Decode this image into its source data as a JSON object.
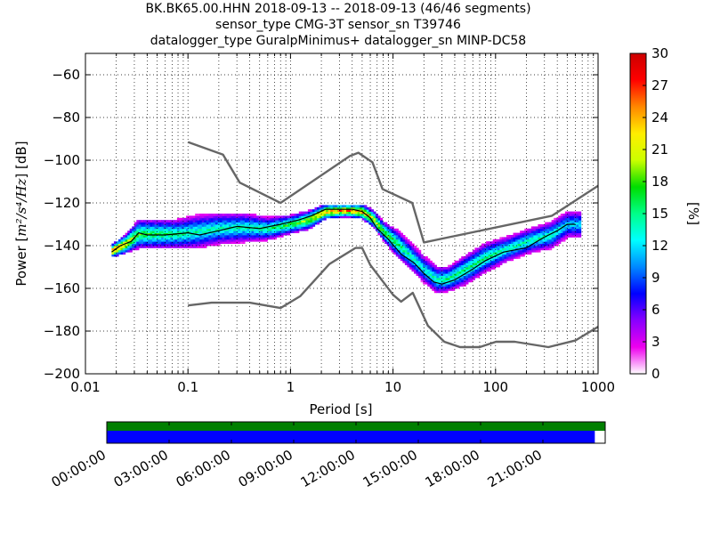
{
  "title_lines": [
    "BK.BK65.00.HHN   2018-09-13 -- 2018-09-13  (46/46 segments)",
    "sensor_type CMG-3T sensor_sn T39746",
    "datalogger_type GuralpMinimus+ datalogger_sn MINP-DC58"
  ],
  "chart_data": [
    {
      "type": "heatmap",
      "xlabel": "Period [s]",
      "ylabel": "Power [m²/s⁴/Hz] [dB]",
      "ylabel_parts": {
        "prefix": "Power [",
        "unit": "m²/s⁴/Hz",
        "suffix": "] [dB]"
      },
      "x_scale": "log",
      "xlim": [
        0.01,
        1000
      ],
      "ylim": [
        -200,
        -50
      ],
      "x_ticks": [
        0.01,
        0.1,
        1,
        10,
        100,
        1000
      ],
      "x_tick_labels": [
        "0.01",
        "0.1",
        "1",
        "10",
        "100",
        "1000"
      ],
      "y_ticks": [
        -200,
        -180,
        -160,
        -140,
        -120,
        -100,
        -80,
        -60
      ],
      "y_tick_labels": [
        "−200",
        "−180",
        "−160",
        "−140",
        "−120",
        "−100",
        "−80",
        "−60"
      ],
      "grid": true,
      "colorbar": {
        "label": "[%]",
        "range": [
          0,
          30
        ],
        "ticks": [
          0,
          3,
          6,
          9,
          12,
          15,
          18,
          21,
          24,
          27,
          30
        ],
        "tick_labels": [
          "0",
          "3",
          "6",
          "9",
          "12",
          "15",
          "18",
          "21",
          "24",
          "27",
          "30"
        ],
        "colors": [
          "#ffffff",
          "#ee00ee",
          "#8800ff",
          "#0000ff",
          "#0088ff",
          "#00ffff",
          "#00ff88",
          "#00dd00",
          "#ccff00",
          "#ffee00",
          "#ff8800",
          "#ff0000",
          "#cc0000"
        ]
      },
      "nhnm": [
        {
          "x": 0.1,
          "y": -91.5
        },
        {
          "x": 0.22,
          "y": -97.4
        },
        {
          "x": 0.32,
          "y": -110.5
        },
        {
          "x": 0.8,
          "y": -120.0
        },
        {
          "x": 3.8,
          "y": -98.0
        },
        {
          "x": 4.6,
          "y": -96.5
        },
        {
          "x": 6.3,
          "y": -101.0
        },
        {
          "x": 7.9,
          "y": -113.5
        },
        {
          "x": 15.4,
          "y": -120.0
        },
        {
          "x": 20,
          "y": -138.5
        },
        {
          "x": 354.8,
          "y": -126.0
        },
        {
          "x": 1000,
          "y": -112.0
        }
      ],
      "nlnm": [
        {
          "x": 0.1,
          "y": -168.0
        },
        {
          "x": 0.17,
          "y": -166.7
        },
        {
          "x": 0.4,
          "y": -166.7
        },
        {
          "x": 0.8,
          "y": -169.2
        },
        {
          "x": 1.24,
          "y": -163.7
        },
        {
          "x": 2.4,
          "y": -148.6
        },
        {
          "x": 4.3,
          "y": -141.1
        },
        {
          "x": 5.0,
          "y": -141.1
        },
        {
          "x": 6.0,
          "y": -149.0
        },
        {
          "x": 10.0,
          "y": -163.0
        },
        {
          "x": 12.0,
          "y": -166.2
        },
        {
          "x": 15.6,
          "y": -162.1
        },
        {
          "x": 21.9,
          "y": -177.5
        },
        {
          "x": 31.6,
          "y": -185.0
        },
        {
          "x": 45,
          "y": -187.5
        },
        {
          "x": 70,
          "y": -187.5
        },
        {
          "x": 101,
          "y": -185.0
        },
        {
          "x": 154,
          "y": -185.0
        },
        {
          "x": 328,
          "y": -187.5
        },
        {
          "x": 600,
          "y": -184.4
        },
        {
          "x": 1000,
          "y": -178.0
        }
      ],
      "mode": [
        {
          "x": 0.018,
          "y": -143
        },
        {
          "x": 0.022,
          "y": -140
        },
        {
          "x": 0.028,
          "y": -138
        },
        {
          "x": 0.033,
          "y": -134
        },
        {
          "x": 0.04,
          "y": -135
        },
        {
          "x": 0.06,
          "y": -135
        },
        {
          "x": 0.1,
          "y": -134
        },
        {
          "x": 0.13,
          "y": -135
        },
        {
          "x": 0.2,
          "y": -133
        },
        {
          "x": 0.3,
          "y": -131
        },
        {
          "x": 0.5,
          "y": -132
        },
        {
          "x": 0.8,
          "y": -130
        },
        {
          "x": 1.2,
          "y": -128
        },
        {
          "x": 1.6,
          "y": -126
        },
        {
          "x": 2.2,
          "y": -123
        },
        {
          "x": 3,
          "y": -123
        },
        {
          "x": 4,
          "y": -123
        },
        {
          "x": 5,
          "y": -124
        },
        {
          "x": 6,
          "y": -127
        },
        {
          "x": 7,
          "y": -132
        },
        {
          "x": 9,
          "y": -137
        },
        {
          "x": 12,
          "y": -144
        },
        {
          "x": 16,
          "y": -148
        },
        {
          "x": 20,
          "y": -153
        },
        {
          "x": 25,
          "y": -157
        },
        {
          "x": 30,
          "y": -158
        },
        {
          "x": 40,
          "y": -156
        },
        {
          "x": 60,
          "y": -151
        },
        {
          "x": 80,
          "y": -147
        },
        {
          "x": 120,
          "y": -143
        },
        {
          "x": 200,
          "y": -141
        },
        {
          "x": 300,
          "y": -136
        },
        {
          "x": 400,
          "y": -133
        },
        {
          "x": 500,
          "y": -130
        },
        {
          "x": 600,
          "y": -130
        }
      ],
      "density_band": [
        {
          "x": 0.018,
          "lo": -145,
          "hi": -140,
          "peak": 27
        },
        {
          "x": 0.025,
          "lo": -143,
          "hi": -135,
          "peak": 22
        },
        {
          "x": 0.033,
          "lo": -141,
          "hi": -128,
          "peak": 17
        },
        {
          "x": 0.05,
          "lo": -141,
          "hi": -128,
          "peak": 16
        },
        {
          "x": 0.08,
          "lo": -141,
          "hi": -128,
          "peak": 15
        },
        {
          "x": 0.12,
          "lo": -141,
          "hi": -126,
          "peak": 14
        },
        {
          "x": 0.2,
          "lo": -139,
          "hi": -125,
          "peak": 14
        },
        {
          "x": 0.35,
          "lo": -138,
          "hi": -125,
          "peak": 14
        },
        {
          "x": 0.6,
          "lo": -137,
          "hi": -127,
          "peak": 15
        },
        {
          "x": 1.0,
          "lo": -134,
          "hi": -126,
          "peak": 17
        },
        {
          "x": 1.5,
          "lo": -132,
          "hi": -124,
          "peak": 19
        },
        {
          "x": 2.2,
          "lo": -127,
          "hi": -121,
          "peak": 24
        },
        {
          "x": 3.5,
          "lo": -126,
          "hi": -121,
          "peak": 25
        },
        {
          "x": 5,
          "lo": -127,
          "hi": -121,
          "peak": 24
        },
        {
          "x": 6.5,
          "lo": -131,
          "hi": -124,
          "peak": 21
        },
        {
          "x": 8,
          "lo": -137,
          "hi": -129,
          "peak": 18
        },
        {
          "x": 11,
          "lo": -145,
          "hi": -133,
          "peak": 16
        },
        {
          "x": 15,
          "lo": -151,
          "hi": -139,
          "peak": 14
        },
        {
          "x": 20,
          "lo": -157,
          "hi": -145,
          "peak": 13
        },
        {
          "x": 27,
          "lo": -162,
          "hi": -150,
          "peak": 14
        },
        {
          "x": 35,
          "lo": -161,
          "hi": -150,
          "peak": 15
        },
        {
          "x": 50,
          "lo": -158,
          "hi": -145,
          "peak": 15
        },
        {
          "x": 80,
          "lo": -152,
          "hi": -139,
          "peak": 15
        },
        {
          "x": 130,
          "lo": -147,
          "hi": -136,
          "peak": 14
        },
        {
          "x": 220,
          "lo": -143,
          "hi": -132,
          "peak": 14
        },
        {
          "x": 350,
          "lo": -141,
          "hi": -129,
          "peak": 14
        },
        {
          "x": 500,
          "lo": -136,
          "hi": -124,
          "peak": 12
        },
        {
          "x": 650,
          "lo": -136,
          "hi": -124,
          "peak": 12
        }
      ]
    },
    {
      "type": "timeline",
      "tick_labels": [
        "00:00:00",
        "03:00:00",
        "06:00:00",
        "09:00:00",
        "12:00:00",
        "15:00:00",
        "18:00:00",
        "21:00:00"
      ],
      "tick_hours": [
        0,
        3,
        6,
        9,
        12,
        15,
        18,
        21
      ],
      "range_hours": [
        0,
        24
      ],
      "data_coverage_hours": [
        0,
        24
      ],
      "psd_segment_coverage_hours": [
        0,
        23.5
      ],
      "colors": {
        "data": "#007f00",
        "segments": "#0000ff"
      }
    }
  ]
}
